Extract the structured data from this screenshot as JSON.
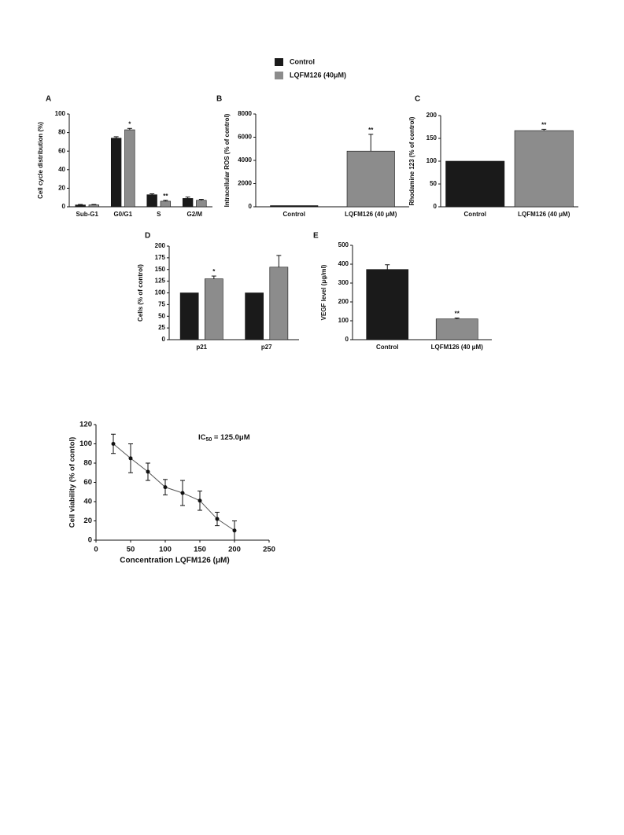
{
  "chart_data": [
    {
      "type": "bar",
      "panel": "A",
      "ylabel": "Cell cycle distribution  (%)",
      "categories": [
        "Sub-G1",
        "G0/G1",
        "S",
        "G2/M"
      ],
      "series": [
        {
          "name": "Control",
          "color": "#1a1a1a",
          "values": [
            2,
            74,
            13,
            9
          ],
          "errors": [
            0.5,
            1.5,
            1,
            1.5
          ],
          "annotations": [
            null,
            null,
            null,
            null
          ]
        },
        {
          "name": "LQFM126 (40μM)",
          "color": "#8c8c8c",
          "values": [
            2,
            83,
            6,
            7
          ],
          "errors": [
            0.5,
            1.5,
            1,
            1
          ],
          "annotations": [
            null,
            "*",
            "**",
            null
          ]
        }
      ],
      "ylim": [
        0,
        100
      ],
      "yticks": [
        0,
        20,
        40,
        60,
        80,
        100
      ]
    },
    {
      "type": "bar",
      "panel": "B",
      "ylabel": "Intracellular ROS (% of control)",
      "categories": [
        "Control",
        "LQFM126 (40 μM)"
      ],
      "values": [
        100,
        4800
      ],
      "errors": [
        null,
        1450
      ],
      "annotations": [
        null,
        "**"
      ],
      "colors": [
        "#1a1a1a",
        "#8c8c8c"
      ],
      "ylim": [
        0,
        8000
      ],
      "yticks": [
        0,
        2000,
        4000,
        6000,
        8000
      ]
    },
    {
      "type": "bar",
      "panel": "C",
      "ylabel": "Rhodamine 123 (% of control)",
      "categories": [
        "Control",
        "LQFM126 (40 μM)"
      ],
      "values": [
        100,
        167
      ],
      "errors": [
        null,
        3
      ],
      "annotations": [
        null,
        "**"
      ],
      "colors": [
        "#1a1a1a",
        "#8c8c8c"
      ],
      "ylim": [
        0,
        200
      ],
      "yticks": [
        0,
        50,
        100,
        150,
        200
      ]
    },
    {
      "type": "bar",
      "panel": "D",
      "ylabel": "Cells (% of control)",
      "categories": [
        "p21",
        "p27"
      ],
      "series": [
        {
          "color": "#1a1a1a",
          "values": [
            100,
            100
          ],
          "errors": [
            null,
            null
          ],
          "annotations": [
            null,
            null
          ]
        },
        {
          "color": "#8c8c8c",
          "values": [
            130,
            155
          ],
          "errors": [
            6,
            25
          ],
          "annotations": [
            "*",
            null
          ]
        }
      ],
      "ylim": [
        0,
        200
      ],
      "yticks": [
        0,
        25,
        50,
        75,
        100,
        125,
        150,
        175,
        200
      ]
    },
    {
      "type": "bar",
      "panel": "E",
      "ylabel": "VEGF level (μg/ml)",
      "categories": [
        "Control",
        "LQFM126 (40 μM)"
      ],
      "values": [
        372,
        110
      ],
      "errors": [
        25,
        5
      ],
      "annotations": [
        null,
        "**"
      ],
      "colors": [
        "#1a1a1a",
        "#8c8c8c"
      ],
      "ylim": [
        0,
        500
      ],
      "yticks": [
        0,
        100,
        200,
        300,
        400,
        500
      ]
    },
    {
      "type": "line",
      "ylabel": "Cell viability (% of contol)",
      "xlabel": "Concentration LQFM126 (μM)",
      "x": [
        25,
        50,
        75,
        100,
        125,
        150,
        175,
        200
      ],
      "values": [
        100,
        85,
        71,
        55,
        49,
        41,
        22,
        10
      ],
      "errors": [
        10,
        15,
        9,
        8,
        13,
        10,
        7,
        10
      ],
      "color": "#555555",
      "annotation": {
        "text": "IC",
        "subscript": "50",
        "suffix": " = 125.0μM"
      },
      "xlim": [
        0,
        250
      ],
      "xticks": [
        0,
        50,
        100,
        150,
        200,
        250
      ],
      "ylim": [
        0,
        120
      ],
      "yticks": [
        0,
        20,
        40,
        60,
        80,
        100,
        120
      ]
    }
  ]
}
